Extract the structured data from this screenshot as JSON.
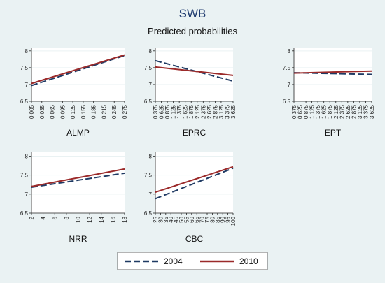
{
  "title": "SWB",
  "subtitle": "Predicted probabilities",
  "colors": {
    "background": "#eaf2f3",
    "series_2004": "#1f3a63",
    "series_2010": "#9b2a2a"
  },
  "legend": {
    "placement": "bottom-center",
    "items": [
      {
        "label": "2004",
        "color": "#1f3a63",
        "dash": "dashed"
      },
      {
        "label": "2010",
        "color": "#9b2a2a",
        "dash": "solid"
      }
    ]
  },
  "chart_data": [
    {
      "type": "line",
      "xlabel": "ALMP",
      "ylim": [
        6.5,
        8.1
      ],
      "yticks": [
        6.5,
        7,
        7.5,
        8
      ],
      "xlim": [
        0.005,
        0.275
      ],
      "xticks": [
        0.005,
        0.035,
        0.065,
        0.095,
        0.125,
        0.155,
        0.185,
        0.215,
        0.245,
        0.275
      ],
      "xtick_labels": [
        "0.005",
        "0.035",
        "0.065",
        "0.095",
        "0.125",
        "0.155",
        "0.185",
        "0.215",
        "0.245",
        "0.275"
      ],
      "series": [
        {
          "name": "2004",
          "x": [
            0.005,
            0.275
          ],
          "y": [
            6.97,
            7.86
          ]
        },
        {
          "name": "2010",
          "x": [
            0.005,
            0.275
          ],
          "y": [
            7.03,
            7.88
          ]
        }
      ]
    },
    {
      "type": "line",
      "xlabel": "EPRC",
      "ylim": [
        6.5,
        8.1
      ],
      "yticks": [
        6.5,
        7,
        7.5,
        8
      ],
      "xlim": [
        0.375,
        3.625
      ],
      "xticks": [
        0.375,
        0.625,
        0.875,
        1.125,
        1.375,
        1.625,
        1.875,
        2.125,
        2.375,
        2.625,
        2.875,
        3.125,
        3.375,
        3.625
      ],
      "xtick_labels": [
        "0.375",
        "0.625",
        "0.875",
        "1.125",
        "1.375",
        "1.625",
        "1.875",
        "2.125",
        "2.375",
        "2.625",
        "2.875",
        "3.125",
        "3.375",
        "3.625"
      ],
      "series": [
        {
          "name": "2004",
          "x": [
            0.375,
            3.625
          ],
          "y": [
            7.71,
            7.1
          ]
        },
        {
          "name": "2010",
          "x": [
            0.375,
            3.625
          ],
          "y": [
            7.52,
            7.27
          ]
        }
      ]
    },
    {
      "type": "line",
      "xlabel": "EPT",
      "ylim": [
        6.5,
        8.1
      ],
      "yticks": [
        6.5,
        7,
        7.5,
        8
      ],
      "xlim": [
        0.375,
        3.625
      ],
      "xticks": [
        0.375,
        0.625,
        0.875,
        1.125,
        1.375,
        1.625,
        1.875,
        2.125,
        2.375,
        2.625,
        2.875,
        3.125,
        3.375,
        3.625
      ],
      "xtick_labels": [
        "0.375",
        "0.625",
        "0.875",
        "1.125",
        "1.375",
        "1.625",
        "1.875",
        "2.125",
        "2.375",
        "2.625",
        "2.875",
        "3.125",
        "3.375",
        "3.625"
      ],
      "series": [
        {
          "name": "2004",
          "x": [
            0.375,
            3.625
          ],
          "y": [
            7.35,
            7.3
          ]
        },
        {
          "name": "2010",
          "x": [
            0.375,
            3.625
          ],
          "y": [
            7.34,
            7.4
          ]
        }
      ]
    },
    {
      "type": "line",
      "xlabel": "NRR",
      "ylim": [
        6.5,
        8.1
      ],
      "yticks": [
        6.5,
        7,
        7.5,
        8
      ],
      "xlim": [
        2,
        18
      ],
      "xticks": [
        2,
        4,
        6,
        8,
        10,
        12,
        14,
        16,
        18
      ],
      "xtick_labels": [
        "2",
        "4",
        "6",
        "8",
        "10",
        "12",
        "14",
        "16",
        "18"
      ],
      "series": [
        {
          "name": "2004",
          "x": [
            2,
            18
          ],
          "y": [
            7.18,
            7.55
          ]
        },
        {
          "name": "2010",
          "x": [
            2,
            18
          ],
          "y": [
            7.2,
            7.66
          ]
        }
      ]
    },
    {
      "type": "line",
      "xlabel": "CBC",
      "ylim": [
        6.5,
        8.1
      ],
      "yticks": [
        6.5,
        7,
        7.5,
        8
      ],
      "xlim": [
        25,
        100
      ],
      "xticks": [
        25,
        30,
        35,
        40,
        45,
        50,
        55,
        60,
        65,
        70,
        75,
        80,
        85,
        90,
        95,
        100
      ],
      "xtick_labels": [
        "25",
        "30",
        "35",
        "40",
        "45",
        "50",
        "55",
        "60",
        "65",
        "70",
        "75",
        "80",
        "85",
        "90",
        "95",
        "100"
      ],
      "series": [
        {
          "name": "2004",
          "x": [
            25,
            100
          ],
          "y": [
            6.88,
            7.68
          ]
        },
        {
          "name": "2010",
          "x": [
            25,
            100
          ],
          "y": [
            7.05,
            7.72
          ]
        }
      ]
    }
  ]
}
